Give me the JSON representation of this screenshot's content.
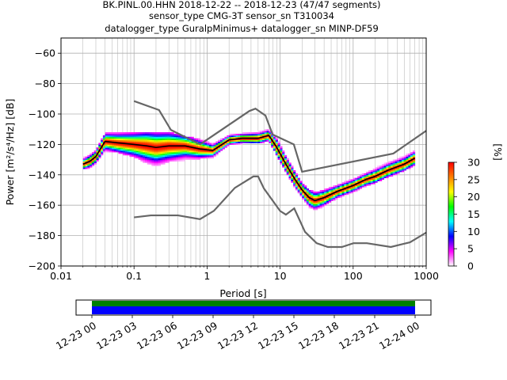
{
  "figure": {
    "title_lines": [
      "BK.PINL.00.HHN   2018-12-22 -- 2018-12-23  (47/47 segments)",
      "sensor_type CMG-3T sensor_sn T310034",
      "datalogger_type GuralpMinimus+ datalogger_sn MINP-DF59"
    ]
  },
  "chart_data": [
    {
      "type": "heatmap",
      "title": "BK.PINL.00.HHN   2018-12-22 -- 2018-12-23  (47/47 segments)",
      "xlabel": "Period [s]",
      "ylabel": "Power [m²/s⁴/Hz] [dB]",
      "xscale": "log",
      "xlim": [
        0.01,
        1000
      ],
      "ylim": [
        -200,
        -50
      ],
      "xticks": [
        0.01,
        0.1,
        1,
        10,
        100,
        1000
      ],
      "xtick_labels": [
        "0.01",
        "0.1",
        "1",
        "10",
        "100",
        "1000"
      ],
      "yticks": [
        -200,
        -180,
        -160,
        -140,
        -120,
        -100,
        -80,
        -60
      ],
      "ytick_labels": [
        "−200",
        "−180",
        "−160",
        "−140",
        "−120",
        "−100",
        "−80",
        "−60"
      ],
      "grid": true,
      "colorbar": {
        "label": "[%]",
        "range": [
          0,
          30
        ],
        "ticks": [
          0,
          5,
          10,
          15,
          20,
          25,
          30
        ],
        "tick_labels": [
          "0",
          "5",
          "10",
          "15",
          "20",
          "25",
          "30"
        ],
        "colors": [
          "#ffffff",
          "#ff00ff",
          "#0000ff",
          "#00ffff",
          "#00ff00",
          "#ffff00",
          "#ff8000",
          "#ff0000"
        ]
      },
      "mean_curve": {
        "color": "#000000",
        "x": [
          0.02,
          0.025,
          0.03,
          0.04,
          0.06,
          0.1,
          0.15,
          0.2,
          0.3,
          0.5,
          0.8,
          1.2,
          2,
          3,
          5,
          7,
          9,
          12,
          16,
          20,
          25,
          30,
          40,
          60,
          100,
          150,
          200,
          300,
          500,
          700
        ],
        "y": [
          -133,
          -131,
          -128,
          -118,
          -119,
          -120,
          -121,
          -122,
          -121,
          -121,
          -123,
          -124,
          -117,
          -116,
          -116,
          -114,
          -122,
          -133,
          -143,
          -150,
          -155,
          -157,
          -155,
          -151,
          -147,
          -143,
          -141,
          -137,
          -133,
          -129
        ]
      },
      "noise_models": [
        {
          "name": "",
          "color": "#666666",
          "x": [
            0.1,
            0.22,
            0.32,
            0.8,
            3.8,
            4.6,
            6.3,
            7.9,
            15.4,
            20,
            354.8,
            1000
          ],
          "y": [
            -91.5,
            -97.4,
            -110.5,
            -120,
            -98,
            -96.5,
            -101,
            -113.5,
            -120,
            -138,
            -126,
            -111
          ]
        },
        {
          "name": "",
          "color": "#666666",
          "x": [
            0.1,
            0.17,
            0.4,
            0.8,
            1.24,
            2.4,
            4.3,
            5.0,
            6.0,
            10,
            12,
            15.6,
            21.9,
            31.6,
            45,
            70,
            101,
            154,
            328,
            600,
            1000
          ],
          "y": [
            -168,
            -166.7,
            -166.7,
            -169.2,
            -163.7,
            -148.6,
            -141.1,
            -141.1,
            -149,
            -163.8,
            -166.2,
            -162.1,
            -177.5,
            -185,
            -187.5,
            -187.5,
            -185,
            -185,
            -187.5,
            -184.4,
            -178
          ]
        }
      ],
      "density_band": {
        "x": [
          0.02,
          0.025,
          0.03,
          0.04,
          0.06,
          0.1,
          0.15,
          0.2,
          0.3,
          0.5,
          0.8,
          1.2,
          2,
          3,
          5,
          7,
          9,
          12,
          16,
          20,
          25,
          30,
          40,
          60,
          100,
          150,
          200,
          300,
          500,
          700
        ],
        "low": [
          -136,
          -135,
          -132,
          -124,
          -125,
          -128,
          -132,
          -134,
          -131,
          -130,
          -129,
          -128,
          -120,
          -119,
          -119,
          -117,
          -127,
          -138,
          -148,
          -155,
          -161,
          -163,
          -160,
          -155,
          -151,
          -147,
          -145,
          -141,
          -137,
          -133
        ],
        "high": [
          -129,
          -127,
          -124,
          -113,
          -112,
          -112,
          -112,
          -113,
          -112,
          -115,
          -117,
          -120,
          -114,
          -113,
          -112,
          -110,
          -116,
          -128,
          -138,
          -146,
          -150,
          -152,
          -150,
          -147,
          -143,
          -139,
          -136,
          -132,
          -128,
          -124
        ]
      }
    },
    {
      "type": "bar",
      "title": "",
      "xlabel": "",
      "ylabel": "",
      "tick_labels": [
        "12-23 00",
        "12-23 03",
        "12-23 06",
        "12-23 09",
        "12-23 12",
        "12-23 15",
        "12-23 18",
        "12-23 21",
        "12-24 00"
      ],
      "coverage": [
        {
          "name": "",
          "start": "12-23 00",
          "end": "12-24 00",
          "color": "#008000"
        },
        {
          "name": "",
          "start": "12-23 00",
          "end": "12-24 00",
          "color": "#0000ff"
        }
      ]
    }
  ]
}
